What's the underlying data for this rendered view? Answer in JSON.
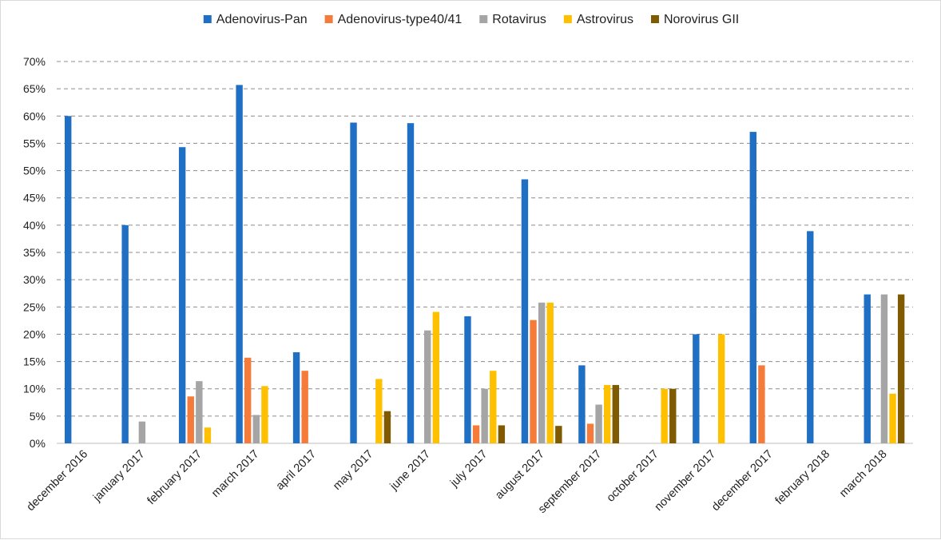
{
  "chart_data": {
    "type": "bar",
    "title": "",
    "xlabel": "",
    "ylabel": "",
    "ylim": [
      0,
      70
    ],
    "y_ticks": [
      "0%",
      "5%",
      "10%",
      "15%",
      "20%",
      "25%",
      "30%",
      "35%",
      "40%",
      "45%",
      "50%",
      "55%",
      "60%",
      "65%",
      "70%"
    ],
    "grid": "horizontal dashed",
    "legend_position": "top",
    "categories": [
      "december 2016",
      "january 2017",
      "february 2017",
      "march 2017",
      "april 2017",
      "may 2017",
      "june 2017",
      "july 2017",
      "august 2017",
      "september 2017",
      "october 2017",
      "november 2017",
      "december 2017",
      "february 2018",
      "march 2018"
    ],
    "series": [
      {
        "name": "Adenovirus-Pan",
        "color": "#1f6fc5",
        "values": [
          60,
          40,
          54.3,
          65.7,
          16.7,
          58.8,
          58.7,
          23.3,
          48.4,
          14.3,
          0,
          20,
          57.1,
          38.9,
          27.3
        ]
      },
      {
        "name": "Adenovirus-type40/41",
        "color": "#f47b3a",
        "values": [
          0,
          0,
          8.6,
          15.7,
          13.3,
          0,
          0,
          3.3,
          22.6,
          3.6,
          0,
          0,
          14.3,
          0,
          0
        ]
      },
      {
        "name": "Rotavirus",
        "color": "#a5a5a5",
        "values": [
          0,
          4,
          11.4,
          5.2,
          0,
          0,
          20.7,
          10,
          25.8,
          7.1,
          0,
          0,
          0,
          0,
          27.3
        ]
      },
      {
        "name": "Astrovirus",
        "color": "#ffc000",
        "values": [
          0,
          0,
          2.9,
          10.5,
          0,
          11.8,
          24.1,
          13.3,
          25.8,
          10.7,
          10,
          20,
          0,
          0,
          9.1
        ]
      },
      {
        "name": "Norovirus GII",
        "color": "#7f5a00",
        "values": [
          0,
          0,
          0,
          0,
          0,
          5.9,
          0,
          3.3,
          3.2,
          10.7,
          10,
          0,
          0,
          0,
          27.3
        ]
      }
    ]
  }
}
